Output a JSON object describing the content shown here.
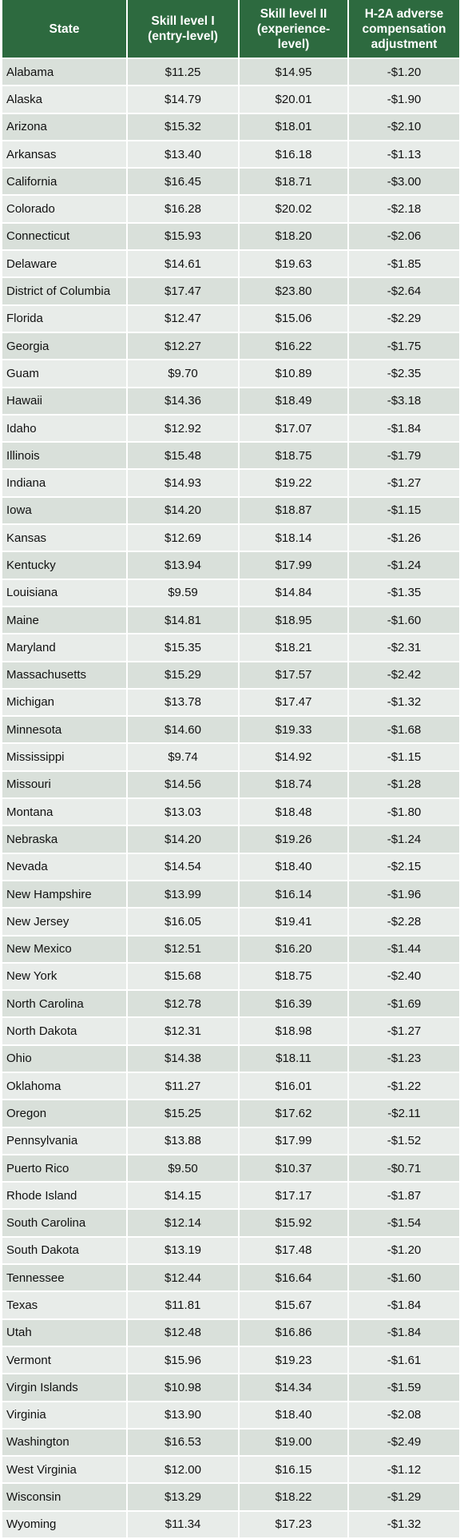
{
  "table": {
    "headers": [
      [
        "State"
      ],
      [
        "Skill level I",
        "(entry-level)"
      ],
      [
        "Skill level II",
        "(experience-",
        "level)"
      ],
      [
        "H-2A adverse",
        "compensation",
        "adjustment"
      ]
    ],
    "rows": [
      [
        "Alabama",
        "$11.25",
        "$14.95",
        "-$1.20"
      ],
      [
        "Alaska",
        "$14.79",
        "$20.01",
        "-$1.90"
      ],
      [
        "Arizona",
        "$15.32",
        "$18.01",
        "-$2.10"
      ],
      [
        "Arkansas",
        "$13.40",
        "$16.18",
        "-$1.13"
      ],
      [
        "California",
        "$16.45",
        "$18.71",
        "-$3.00"
      ],
      [
        "Colorado",
        "$16.28",
        "$20.02",
        "-$2.18"
      ],
      [
        "Connecticut",
        "$15.93",
        "$18.20",
        "-$2.06"
      ],
      [
        "Delaware",
        "$14.61",
        "$19.63",
        "-$1.85"
      ],
      [
        "District of Columbia",
        "$17.47",
        "$23.80",
        "-$2.64"
      ],
      [
        "Florida",
        "$12.47",
        "$15.06",
        "-$2.29"
      ],
      [
        "Georgia",
        "$12.27",
        "$16.22",
        "-$1.75"
      ],
      [
        "Guam",
        "$9.70",
        "$10.89",
        "-$2.35"
      ],
      [
        "Hawaii",
        "$14.36",
        "$18.49",
        "-$3.18"
      ],
      [
        "Idaho",
        "$12.92",
        "$17.07",
        "-$1.84"
      ],
      [
        "Illinois",
        "$15.48",
        "$18.75",
        "-$1.79"
      ],
      [
        "Indiana",
        "$14.93",
        "$19.22",
        "-$1.27"
      ],
      [
        "Iowa",
        "$14.20",
        "$18.87",
        "-$1.15"
      ],
      [
        "Kansas",
        "$12.69",
        "$18.14",
        "-$1.26"
      ],
      [
        "Kentucky",
        "$13.94",
        "$17.99",
        "-$1.24"
      ],
      [
        "Louisiana",
        "$9.59",
        "$14.84",
        "-$1.35"
      ],
      [
        "Maine",
        "$14.81",
        "$18.95",
        "-$1.60"
      ],
      [
        "Maryland",
        "$15.35",
        "$18.21",
        "-$2.31"
      ],
      [
        "Massachusetts",
        "$15.29",
        "$17.57",
        "-$2.42"
      ],
      [
        "Michigan",
        "$13.78",
        "$17.47",
        "-$1.32"
      ],
      [
        "Minnesota",
        "$14.60",
        "$19.33",
        "-$1.68"
      ],
      [
        "Mississippi",
        "$9.74",
        "$14.92",
        "-$1.15"
      ],
      [
        "Missouri",
        "$14.56",
        "$18.74",
        "-$1.28"
      ],
      [
        "Montana",
        "$13.03",
        "$18.48",
        "-$1.80"
      ],
      [
        "Nebraska",
        "$14.20",
        "$19.26",
        "-$1.24"
      ],
      [
        "Nevada",
        "$14.54",
        "$18.40",
        "-$2.15"
      ],
      [
        "New Hampshire",
        "$13.99",
        "$16.14",
        "-$1.96"
      ],
      [
        "New Jersey",
        "$16.05",
        "$19.41",
        "-$2.28"
      ],
      [
        "New Mexico",
        "$12.51",
        "$16.20",
        "-$1.44"
      ],
      [
        "New York",
        "$15.68",
        "$18.75",
        "-$2.40"
      ],
      [
        "North Carolina",
        "$12.78",
        "$16.39",
        "-$1.69"
      ],
      [
        "North Dakota",
        "$12.31",
        "$18.98",
        "-$1.27"
      ],
      [
        "Ohio",
        "$14.38",
        "$18.11",
        "-$1.23"
      ],
      [
        "Oklahoma",
        "$11.27",
        "$16.01",
        "-$1.22"
      ],
      [
        "Oregon",
        "$15.25",
        "$17.62",
        "-$2.11"
      ],
      [
        "Pennsylvania",
        "$13.88",
        "$17.99",
        "-$1.52"
      ],
      [
        "Puerto Rico",
        "$9.50",
        "$10.37",
        "-$0.71"
      ],
      [
        "Rhode Island",
        "$14.15",
        "$17.17",
        "-$1.87"
      ],
      [
        "South Carolina",
        "$12.14",
        "$15.92",
        "-$1.54"
      ],
      [
        "South Dakota",
        "$13.19",
        "$17.48",
        "-$1.20"
      ],
      [
        "Tennessee",
        "$12.44",
        "$16.64",
        "-$1.60"
      ],
      [
        "Texas",
        "$11.81",
        "$15.67",
        "-$1.84"
      ],
      [
        "Utah",
        "$12.48",
        "$16.86",
        "-$1.84"
      ],
      [
        "Vermont",
        "$15.96",
        "$19.23",
        "-$1.61"
      ],
      [
        "Virgin Islands",
        "$10.98",
        "$14.34",
        "-$1.59"
      ],
      [
        "Virginia",
        "$13.90",
        "$18.40",
        "-$2.08"
      ],
      [
        "Washington",
        "$16.53",
        "$19.00",
        "-$2.49"
      ],
      [
        "West Virginia",
        "$12.00",
        "$16.15",
        "-$1.12"
      ],
      [
        "Wisconsin",
        "$13.29",
        "$18.22",
        "-$1.29"
      ],
      [
        "Wyoming",
        "$11.34",
        "$17.23",
        "-$1.32"
      ]
    ]
  },
  "colors": {
    "header_bg": "#2d6a3f",
    "header_text": "#ffffff",
    "row_dark": "#d9e0da",
    "row_light": "#e8ece9"
  }
}
